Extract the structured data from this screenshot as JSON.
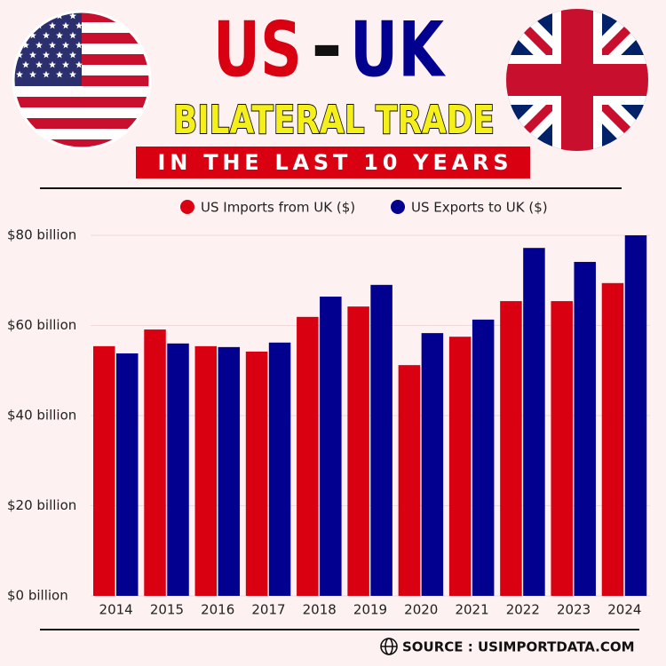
{
  "chart_data": {
    "type": "bar",
    "title_left": "US",
    "title_separator": "-",
    "title_right": "UK",
    "subtitle": "BILATERAL TRADE",
    "banner": "IN THE LAST 10 YEARS",
    "source": "SOURCE : USIMPORTDATA.COM",
    "categories": [
      "2014",
      "2015",
      "2016",
      "2017",
      "2018",
      "2019",
      "2020",
      "2021",
      "2022",
      "2023",
      "2024"
    ],
    "series": [
      {
        "name": "US Imports from UK ($)",
        "color": "#d90012",
        "values": [
          55.4,
          59.1,
          55.4,
          54.2,
          61.9,
          64.2,
          51.2,
          57.5,
          65.4,
          65.4,
          69.4
        ]
      },
      {
        "name": "US Exports to UK ($)",
        "color": "#02008f",
        "values": [
          53.8,
          56.0,
          55.2,
          56.2,
          66.4,
          69.0,
          58.3,
          61.3,
          77.2,
          74.1,
          80.0
        ]
      }
    ],
    "ylim": [
      0,
      80
    ],
    "yticks": [
      {
        "value": 0,
        "label": "$0 billion"
      },
      {
        "value": 20,
        "label": "$20 billion"
      },
      {
        "value": 40,
        "label": "$40 billion"
      },
      {
        "value": 60,
        "label": "$60 billion"
      },
      {
        "value": 80,
        "label": "$80 billion"
      }
    ],
    "grid": true,
    "legend": "top"
  }
}
